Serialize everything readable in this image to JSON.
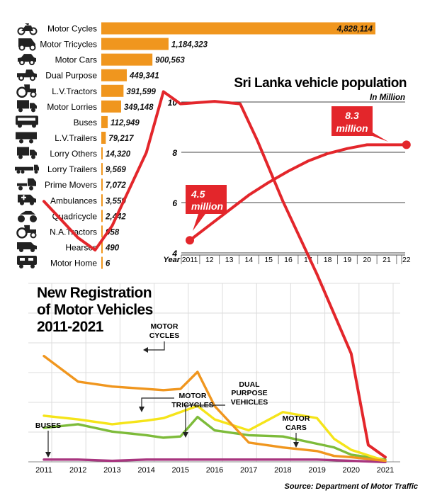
{
  "chart_data": [
    {
      "type": "bar",
      "orientation": "horizontal",
      "categories": [
        "Motor Cycles",
        "Motor Tricycles",
        "Motor Cars",
        "Dual Purpose",
        "L.V.Tractors",
        "Motor Lorries",
        "Buses",
        "L.V.Trailers",
        "Lorry Others",
        "Lorry Trailers",
        "Prime Movers",
        "Ambulances",
        "Quadricycle",
        "N.A.Tractors",
        "Hearses",
        "Motor Home"
      ],
      "values": [
        4828114,
        1184323,
        900563,
        449341,
        391599,
        349148,
        112949,
        79217,
        14320,
        9569,
        7072,
        3559,
        2442,
        958,
        490,
        6
      ],
      "value_labels": [
        "4,828,114",
        "1,184,323",
        "900,563",
        "449,341",
        "391,599",
        "349,148",
        "112,949",
        "79,217",
        "14,320",
        "9,569",
        "7,072",
        "3,559",
        "2,442",
        "958",
        "490",
        "6"
      ],
      "icons": [
        "motorcycle-icon",
        "tricycle-icon",
        "car-icon",
        "pickup-icon",
        "tractor-icon",
        "lorry-icon",
        "bus-icon",
        "trailer-icon",
        "lorry-icon",
        "trailer-truck-icon",
        "prime-mover-icon",
        "ambulance-icon",
        "quadricycle-icon",
        "tractor-icon",
        "hearse-icon",
        "motorhome-icon"
      ],
      "colors": {
        "bar": "#f0961e",
        "icon": "#222222"
      }
    },
    {
      "type": "line",
      "title": "Sri Lanka vehicle population",
      "subtitle": "In Million",
      "xlabel": "Year",
      "x": [
        "2011",
        "12",
        "13",
        "14",
        "15",
        "16",
        "17",
        "18",
        "19",
        "20",
        "21",
        "22"
      ],
      "values": [
        4.5,
        5.1,
        5.7,
        6.3,
        6.8,
        7.25,
        7.65,
        7.95,
        8.15,
        8.3,
        8.3,
        8.3
      ],
      "y_ticks": [
        4,
        6,
        8,
        10
      ],
      "ylim": [
        4,
        10
      ],
      "grid": true,
      "annotations": [
        {
          "text": "4.5 million",
          "point": 0
        },
        {
          "text": "8.3 million",
          "point": 11
        }
      ],
      "colors": {
        "line": "#e3262b",
        "label_bg": "#e3262b",
        "axis": "#555555"
      }
    },
    {
      "type": "line",
      "title": [
        "New Registration",
        "of Motor Vehicles",
        "2011-2021"
      ],
      "x": [
        "2011",
        "2012",
        "2013",
        "2014",
        "2015",
        "2016",
        "2017",
        "2018",
        "2019",
        "2020",
        "2021"
      ],
      "x_positions": [
        0,
        1,
        2,
        3,
        3.5,
        4,
        5,
        5.75,
        6.25,
        7,
        8,
        9,
        9.5,
        10
      ],
      "series": [
        {
          "name": "MOTOR CYCLES",
          "color": "#e3262b",
          "x": [
            0,
            1,
            1.5,
            2,
            3,
            3.5,
            4,
            5,
            5.75,
            6.25,
            7,
            8,
            9,
            9.5,
            10
          ],
          "values": [
            330,
            300,
            290,
            310,
            370,
            420,
            410,
            412,
            410,
            380,
            330,
            270,
            205,
            130,
            120
          ]
        },
        {
          "name": "MOTOR TRICYCLES",
          "color": "#f0961e",
          "x": [
            0,
            1,
            2,
            3,
            3.5,
            4,
            4.5,
            5,
            6,
            7,
            8,
            8.5,
            9,
            10
          ],
          "values": [
            203,
            182,
            178,
            176,
            175,
            176,
            190,
            162,
            132,
            128,
            125,
            121,
            120,
            117
          ]
        },
        {
          "name": "MOTOR CARS",
          "color": "#f5e41a",
          "x": [
            0,
            1,
            2,
            3,
            3.5,
            4,
            4.5,
            5,
            6,
            7,
            8,
            8.5,
            9,
            10
          ],
          "values": [
            154,
            151,
            147,
            150,
            152,
            157,
            162,
            151,
            142,
            157,
            152,
            135,
            126,
            117
          ]
        },
        {
          "name": "DUAL PURPOSE VEHICLES",
          "color": "#7dbb3a",
          "x": [
            0,
            1,
            2,
            3,
            3.5,
            4,
            4.5,
            5,
            6,
            7,
            8,
            8.5,
            9,
            10
          ],
          "values": [
            144,
            147,
            141,
            138,
            136,
            137,
            153,
            142,
            138,
            137,
            131,
            128,
            122,
            118
          ]
        },
        {
          "name": "BUSES",
          "color": "#a8357f",
          "x": [
            0,
            1,
            2,
            3,
            3.5,
            4,
            5,
            6,
            7,
            8,
            9,
            10
          ],
          "values": [
            118,
            118,
            117,
            118,
            118,
            118,
            118,
            118,
            118,
            118,
            117,
            116
          ]
        }
      ],
      "annotations": [
        "MOTOR CYCLES",
        "MOTOR TRICYCLES",
        "DUAL PURPOSE VEHICLES",
        "MOTOR CARS",
        "BUSES"
      ],
      "grid": true,
      "colors": {
        "grid": "#dcdcdc",
        "title": "#111111"
      }
    }
  ],
  "source": "Source: Department of Motor Traffic"
}
